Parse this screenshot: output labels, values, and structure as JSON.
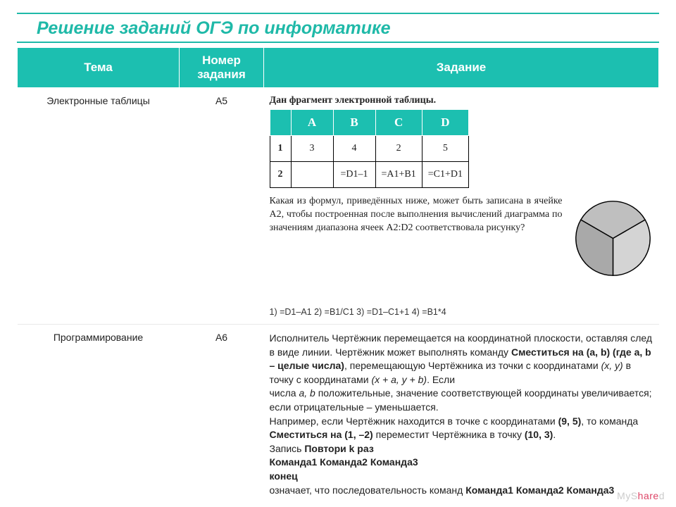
{
  "title": "Решение заданий ОГЭ по информатике",
  "headers": {
    "tema": "Тема",
    "nomer": "Номер задания",
    "zad": "Задание"
  },
  "row1": {
    "tema": "Электронные таблицы",
    "nomer": "A5",
    "frag_label": "Дан фрагмент электронной таблицы.",
    "sheet": {
      "cols": [
        "A",
        "B",
        "C",
        "D"
      ],
      "r1": [
        "3",
        "4",
        "2",
        "5"
      ],
      "r2": [
        "",
        "=D1–1",
        "=A1+B1",
        "=C1+D1"
      ]
    },
    "question": "Какая из формул, приведённых ниже, может быть записана в ячейке A2, чтобы построенная после выполнения вычислений диаграмма по значениям диапазона ячеек A2:D2 соответствовала рисунку?",
    "answers": "1) =D1–A1   2) =B1/C1   3) =D1–C1+1   4) =B1*4",
    "pie": {
      "slices": [
        {
          "start": 300,
          "end": 420,
          "color": "#bfbfbf"
        },
        {
          "start": 60,
          "end": 180,
          "color": "#d4d4d4"
        },
        {
          "start": 180,
          "end": 300,
          "color": "#a9a9a9"
        }
      ],
      "stroke": "#000000"
    }
  },
  "row2": {
    "tema": "Программирование",
    "nomer": "A6",
    "p1a": "Исполнитель Чертёжник перемещается на координатной плоскости, оставляя след в виде линии. Чертёжник может выполнять команду ",
    "p1b": "Сместиться на (a, b) (где a, b – целые числа)",
    "p1c": ", перемещающую Чертёжника из точки с координатами ",
    "p1d": "(x, y)",
    "p1e": " в точку с координатами ",
    "p1f": "(x + a, y + b)",
    "p1g": ". Если",
    "p2a": "числа ",
    "p2b": "a, b",
    "p2c": " положительные, значение соответствующей координаты  увеличивается; если отрицательные – уменьшается.",
    "p3a": "Например, если Чертёжник находится в точке с координатами ",
    "p3b": "(9, 5)",
    "p3c": ", то команда ",
    "p3d": "Сместиться на (1, –2)",
    "p3e": " переместит Чертёжника в точку ",
    "p3f": "(10, 3)",
    "p3g": ".",
    "p4a": "Запись  ",
    "p4b": "Повтори k раз",
    "p5": "Команда1 Команда2 Команда3",
    "p6": "конец",
    "p7a": "означает, что последовательность команд ",
    "p7b": "Команда1 Команда2 Команда3"
  },
  "watermark": {
    "a": "MyS",
    "b": "hare",
    "c": "d"
  },
  "colors": {
    "accent": "#1fb9a8",
    "header_bg": "#1cbfb0",
    "header_text": "#ffffff"
  }
}
